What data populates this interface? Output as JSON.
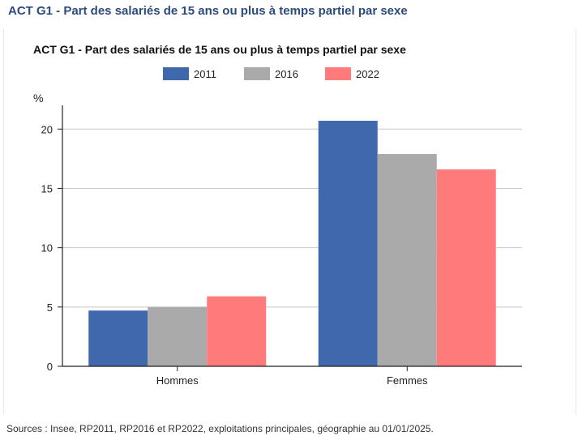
{
  "page": {
    "title": "ACT G1 - Part des salariés de 15 ans ou plus à temps partiel par sexe",
    "source": "Sources : Insee, RP2011, RP2016 et RP2022, exploitations principales, géographie au 01/01/2025."
  },
  "chart_data": {
    "type": "bar",
    "title": "ACT G1 - Part des salariés de 15 ans ou plus à temps partiel par sexe",
    "ylabel": "%",
    "xlabel": "",
    "categories": [
      "Hommes",
      "Femmes"
    ],
    "series": [
      {
        "name": "2011",
        "color": "#4069ad",
        "values": [
          4.7,
          20.7
        ]
      },
      {
        "name": "2016",
        "color": "#aaaaaa",
        "values": [
          5.0,
          17.9
        ]
      },
      {
        "name": "2022",
        "color": "#ff7b7b",
        "values": [
          5.9,
          16.6
        ]
      }
    ],
    "ylim": [
      0,
      22
    ],
    "yticks": [
      "0",
      "5",
      "10",
      "15",
      "20"
    ],
    "grid": true,
    "legend_position": "top-center"
  }
}
